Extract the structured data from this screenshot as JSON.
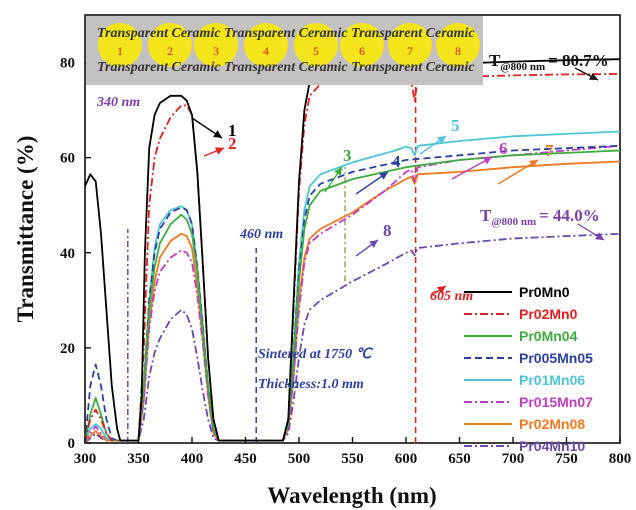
{
  "chart_data": {
    "type": "line",
    "xlabel": "Wavelength (nm)",
    "ylabel": "Transmittance (%)",
    "xlim": [
      300,
      800
    ],
    "ylim": [
      0,
      90
    ],
    "xticks": [
      300,
      350,
      400,
      450,
      500,
      550,
      600,
      650,
      700,
      750,
      800
    ],
    "yticks": [
      0,
      20,
      40,
      60,
      80
    ],
    "grid": false,
    "legend_position": "right",
    "series": [
      {
        "name": "Pr0Mn0",
        "color": "#000000",
        "dash": "solid",
        "label_number": "1",
        "points": [
          [
            300,
            54
          ],
          [
            305,
            56.5
          ],
          [
            310,
            55
          ],
          [
            315,
            44
          ],
          [
            320,
            28
          ],
          [
            325,
            12
          ],
          [
            330,
            3
          ],
          [
            333,
            0.5
          ],
          [
            350,
            0.5
          ],
          [
            353,
            10
          ],
          [
            356,
            40
          ],
          [
            360,
            62
          ],
          [
            365,
            69
          ],
          [
            370,
            71.5
          ],
          [
            380,
            73
          ],
          [
            390,
            73
          ],
          [
            395,
            72
          ],
          [
            400,
            69
          ],
          [
            405,
            57
          ],
          [
            410,
            38
          ],
          [
            415,
            18
          ],
          [
            420,
            5
          ],
          [
            425,
            0.5
          ],
          [
            485,
            0.5
          ],
          [
            490,
            5
          ],
          [
            495,
            30
          ],
          [
            500,
            55
          ],
          [
            505,
            70
          ],
          [
            510,
            76
          ],
          [
            515,
            77.5
          ],
          [
            520,
            78
          ],
          [
            550,
            78.7
          ],
          [
            600,
            79.2
          ],
          [
            650,
            79.8
          ],
          [
            700,
            80.2
          ],
          [
            750,
            80.5
          ],
          [
            800,
            80.7
          ]
        ]
      },
      {
        "name": "Pr02Mn0",
        "color": "#e0201e",
        "dash": "dashdot",
        "label_number": "2",
        "points": [
          [
            300,
            0
          ],
          [
            305,
            5
          ],
          [
            310,
            7
          ],
          [
            315,
            5
          ],
          [
            320,
            2
          ],
          [
            325,
            0.5
          ],
          [
            350,
            0.5
          ],
          [
            355,
            20
          ],
          [
            360,
            50
          ],
          [
            365,
            60
          ],
          [
            370,
            64
          ],
          [
            380,
            68.5
          ],
          [
            390,
            71
          ],
          [
            395,
            71
          ],
          [
            400,
            69
          ],
          [
            405,
            57
          ],
          [
            410,
            38
          ],
          [
            415,
            18
          ],
          [
            420,
            5
          ],
          [
            425,
            0.5
          ],
          [
            485,
            0.5
          ],
          [
            490,
            5
          ],
          [
            495,
            28
          ],
          [
            500,
            53
          ],
          [
            505,
            67
          ],
          [
            510,
            73
          ],
          [
            520,
            75.5
          ],
          [
            550,
            76.2
          ],
          [
            580,
            76.5
          ],
          [
            590,
            75.8
          ],
          [
            595,
            76.5
          ],
          [
            605,
            76.2
          ],
          [
            608,
            72
          ],
          [
            611,
            76.5
          ],
          [
            650,
            77
          ],
          [
            700,
            77.3
          ],
          [
            750,
            77.5
          ],
          [
            800,
            77.6
          ]
        ]
      },
      {
        "name": "Pr0Mn04",
        "color": "#3cac3c",
        "dash": "solid",
        "label_number": "3",
        "points": [
          [
            300,
            0
          ],
          [
            305,
            6
          ],
          [
            310,
            9.5
          ],
          [
            315,
            6
          ],
          [
            320,
            2
          ],
          [
            325,
            0.5
          ],
          [
            350,
            0.5
          ],
          [
            355,
            12
          ],
          [
            360,
            28
          ],
          [
            365,
            37
          ],
          [
            370,
            42
          ],
          [
            380,
            46
          ],
          [
            390,
            48
          ],
          [
            395,
            47
          ],
          [
            400,
            44
          ],
          [
            405,
            36
          ],
          [
            410,
            24
          ],
          [
            415,
            12
          ],
          [
            420,
            3
          ],
          [
            425,
            0.5
          ],
          [
            485,
            0.5
          ],
          [
            490,
            4
          ],
          [
            495,
            18
          ],
          [
            500,
            34
          ],
          [
            505,
            45
          ],
          [
            510,
            50
          ],
          [
            520,
            53
          ],
          [
            550,
            55.5
          ],
          [
            600,
            58
          ],
          [
            650,
            59.5
          ],
          [
            700,
            60.5
          ],
          [
            750,
            61
          ],
          [
            800,
            61.5
          ]
        ]
      },
      {
        "name": "Pr005Mn05",
        "color": "#2b3fa0",
        "dash": "dashed",
        "label_number": "4",
        "points": [
          [
            300,
            0
          ],
          [
            305,
            12
          ],
          [
            310,
            16.5
          ],
          [
            315,
            12
          ],
          [
            320,
            5
          ],
          [
            325,
            1
          ],
          [
            330,
            0.5
          ],
          [
            350,
            0.5
          ],
          [
            355,
            12
          ],
          [
            360,
            30
          ],
          [
            365,
            40
          ],
          [
            370,
            45
          ],
          [
            380,
            48.5
          ],
          [
            390,
            49.5
          ],
          [
            395,
            49
          ],
          [
            400,
            46
          ],
          [
            405,
            37
          ],
          [
            410,
            25
          ],
          [
            415,
            12
          ],
          [
            420,
            3
          ],
          [
            425,
            0.5
          ],
          [
            485,
            0.5
          ],
          [
            490,
            4
          ],
          [
            495,
            18
          ],
          [
            500,
            36
          ],
          [
            505,
            47
          ],
          [
            510,
            52
          ],
          [
            520,
            54.5
          ],
          [
            550,
            57
          ],
          [
            600,
            59.5
          ],
          [
            650,
            60.5
          ],
          [
            700,
            61.5
          ],
          [
            750,
            62
          ],
          [
            800,
            62.5
          ]
        ]
      },
      {
        "name": "Pr01Mn06",
        "color": "#4fc4d4",
        "dash": "solid",
        "label_number": "5",
        "points": [
          [
            300,
            0
          ],
          [
            305,
            3
          ],
          [
            310,
            4
          ],
          [
            315,
            3
          ],
          [
            320,
            1
          ],
          [
            325,
            0.5
          ],
          [
            350,
            0.5
          ],
          [
            355,
            12
          ],
          [
            360,
            30
          ],
          [
            365,
            41
          ],
          [
            370,
            46
          ],
          [
            380,
            49
          ],
          [
            390,
            49.8
          ],
          [
            395,
            49
          ],
          [
            400,
            46
          ],
          [
            405,
            37
          ],
          [
            410,
            25
          ],
          [
            415,
            12
          ],
          [
            420,
            3
          ],
          [
            425,
            0.5
          ],
          [
            485,
            0.5
          ],
          [
            490,
            4
          ],
          [
            495,
            20
          ],
          [
            500,
            38
          ],
          [
            505,
            49
          ],
          [
            510,
            54
          ],
          [
            520,
            56.5
          ],
          [
            550,
            59
          ],
          [
            590,
            61.5
          ],
          [
            600,
            62.3
          ],
          [
            605,
            62
          ],
          [
            608,
            60.5
          ],
          [
            611,
            62.5
          ],
          [
            650,
            63.5
          ],
          [
            700,
            64.5
          ],
          [
            750,
            65
          ],
          [
            800,
            65.5
          ]
        ]
      },
      {
        "name": "Pr015Mn07",
        "color": "#c03cc0",
        "dash": "dashdot",
        "label_number": "6",
        "points": [
          [
            300,
            0
          ],
          [
            305,
            2
          ],
          [
            310,
            3.5
          ],
          [
            315,
            2
          ],
          [
            320,
            1
          ],
          [
            325,
            0.5
          ],
          [
            350,
            0.5
          ],
          [
            355,
            9
          ],
          [
            360,
            24
          ],
          [
            365,
            32
          ],
          [
            370,
            36
          ],
          [
            380,
            39
          ],
          [
            390,
            40.5
          ],
          [
            395,
            40
          ],
          [
            400,
            38
          ],
          [
            405,
            31
          ],
          [
            410,
            21
          ],
          [
            415,
            10
          ],
          [
            420,
            2
          ],
          [
            425,
            0.5
          ],
          [
            485,
            0.5
          ],
          [
            490,
            3
          ],
          [
            495,
            14
          ],
          [
            500,
            28
          ],
          [
            505,
            38
          ],
          [
            510,
            42
          ],
          [
            520,
            44
          ],
          [
            550,
            48
          ],
          [
            580,
            53
          ],
          [
            600,
            57
          ],
          [
            605,
            57.5
          ],
          [
            608,
            55
          ],
          [
            611,
            58
          ],
          [
            650,
            59.5
          ],
          [
            700,
            60.5
          ],
          [
            750,
            61.5
          ],
          [
            800,
            62.5
          ]
        ]
      },
      {
        "name": "Pr02Mn08",
        "color": "#f07820",
        "dash": "solid",
        "label_number": "7",
        "points": [
          [
            300,
            0
          ],
          [
            305,
            1.5
          ],
          [
            310,
            2.5
          ],
          [
            315,
            1.5
          ],
          [
            320,
            0.5
          ],
          [
            350,
            0.5
          ],
          [
            355,
            9
          ],
          [
            360,
            25
          ],
          [
            365,
            34
          ],
          [
            370,
            39
          ],
          [
            380,
            42.5
          ],
          [
            390,
            44
          ],
          [
            395,
            43.5
          ],
          [
            400,
            41
          ],
          [
            405,
            33
          ],
          [
            410,
            22
          ],
          [
            415,
            10
          ],
          [
            420,
            2
          ],
          [
            425,
            0.5
          ],
          [
            485,
            0.5
          ],
          [
            490,
            3
          ],
          [
            495,
            14
          ],
          [
            500,
            30
          ],
          [
            505,
            39
          ],
          [
            510,
            43
          ],
          [
            520,
            45
          ],
          [
            550,
            48.5
          ],
          [
            580,
            53
          ],
          [
            600,
            55.5
          ],
          [
            605,
            56
          ],
          [
            608,
            54.5
          ],
          [
            611,
            56.5
          ],
          [
            650,
            57
          ],
          [
            700,
            58
          ],
          [
            750,
            58.7
          ],
          [
            800,
            59.2
          ]
        ]
      },
      {
        "name": "Pr04Mn10",
        "color": "#6a4aa8",
        "dash": "dashdot",
        "label_number": "8",
        "points": [
          [
            300,
            0
          ],
          [
            305,
            1
          ],
          [
            310,
            2
          ],
          [
            315,
            1
          ],
          [
            320,
            0.5
          ],
          [
            350,
            0.5
          ],
          [
            355,
            5
          ],
          [
            360,
            14
          ],
          [
            365,
            19
          ],
          [
            370,
            22
          ],
          [
            380,
            26
          ],
          [
            390,
            28
          ],
          [
            395,
            27
          ],
          [
            400,
            24
          ],
          [
            405,
            18
          ],
          [
            410,
            11
          ],
          [
            415,
            5
          ],
          [
            420,
            1
          ],
          [
            425,
            0.5
          ],
          [
            485,
            0.5
          ],
          [
            490,
            2
          ],
          [
            495,
            9
          ],
          [
            500,
            18
          ],
          [
            505,
            25
          ],
          [
            510,
            28
          ],
          [
            520,
            30
          ],
          [
            550,
            34
          ],
          [
            580,
            37.5
          ],
          [
            600,
            40
          ],
          [
            605,
            40.5
          ],
          [
            608,
            39.5
          ],
          [
            611,
            41
          ],
          [
            650,
            42
          ],
          [
            700,
            43
          ],
          [
            750,
            43.5
          ],
          [
            800,
            44
          ]
        ]
      }
    ],
    "annotations": {
      "wl_340": "340 nm",
      "wl_460": "460 nm",
      "wl_605": "605 nm",
      "t_top_prefix": "T",
      "t_top_sub": "@800 nm",
      "t_top_value": "= 80.7%",
      "t_bottom_prefix": "T",
      "t_bottom_sub": "@800 nm",
      "t_bottom_value": "= 44.0%",
      "sintered": "Sintered at 1750 ℃",
      "thickness": "Thickness:1.0 mm"
    },
    "inset_photo": {
      "text": "Transparent Ceramic Transparent Ceramic Transparent Ceramic",
      "disk_labels": [
        "1",
        "2",
        "3",
        "4",
        "5",
        "6",
        "7",
        "8"
      ],
      "disk_color": "#f3e51a"
    }
  }
}
